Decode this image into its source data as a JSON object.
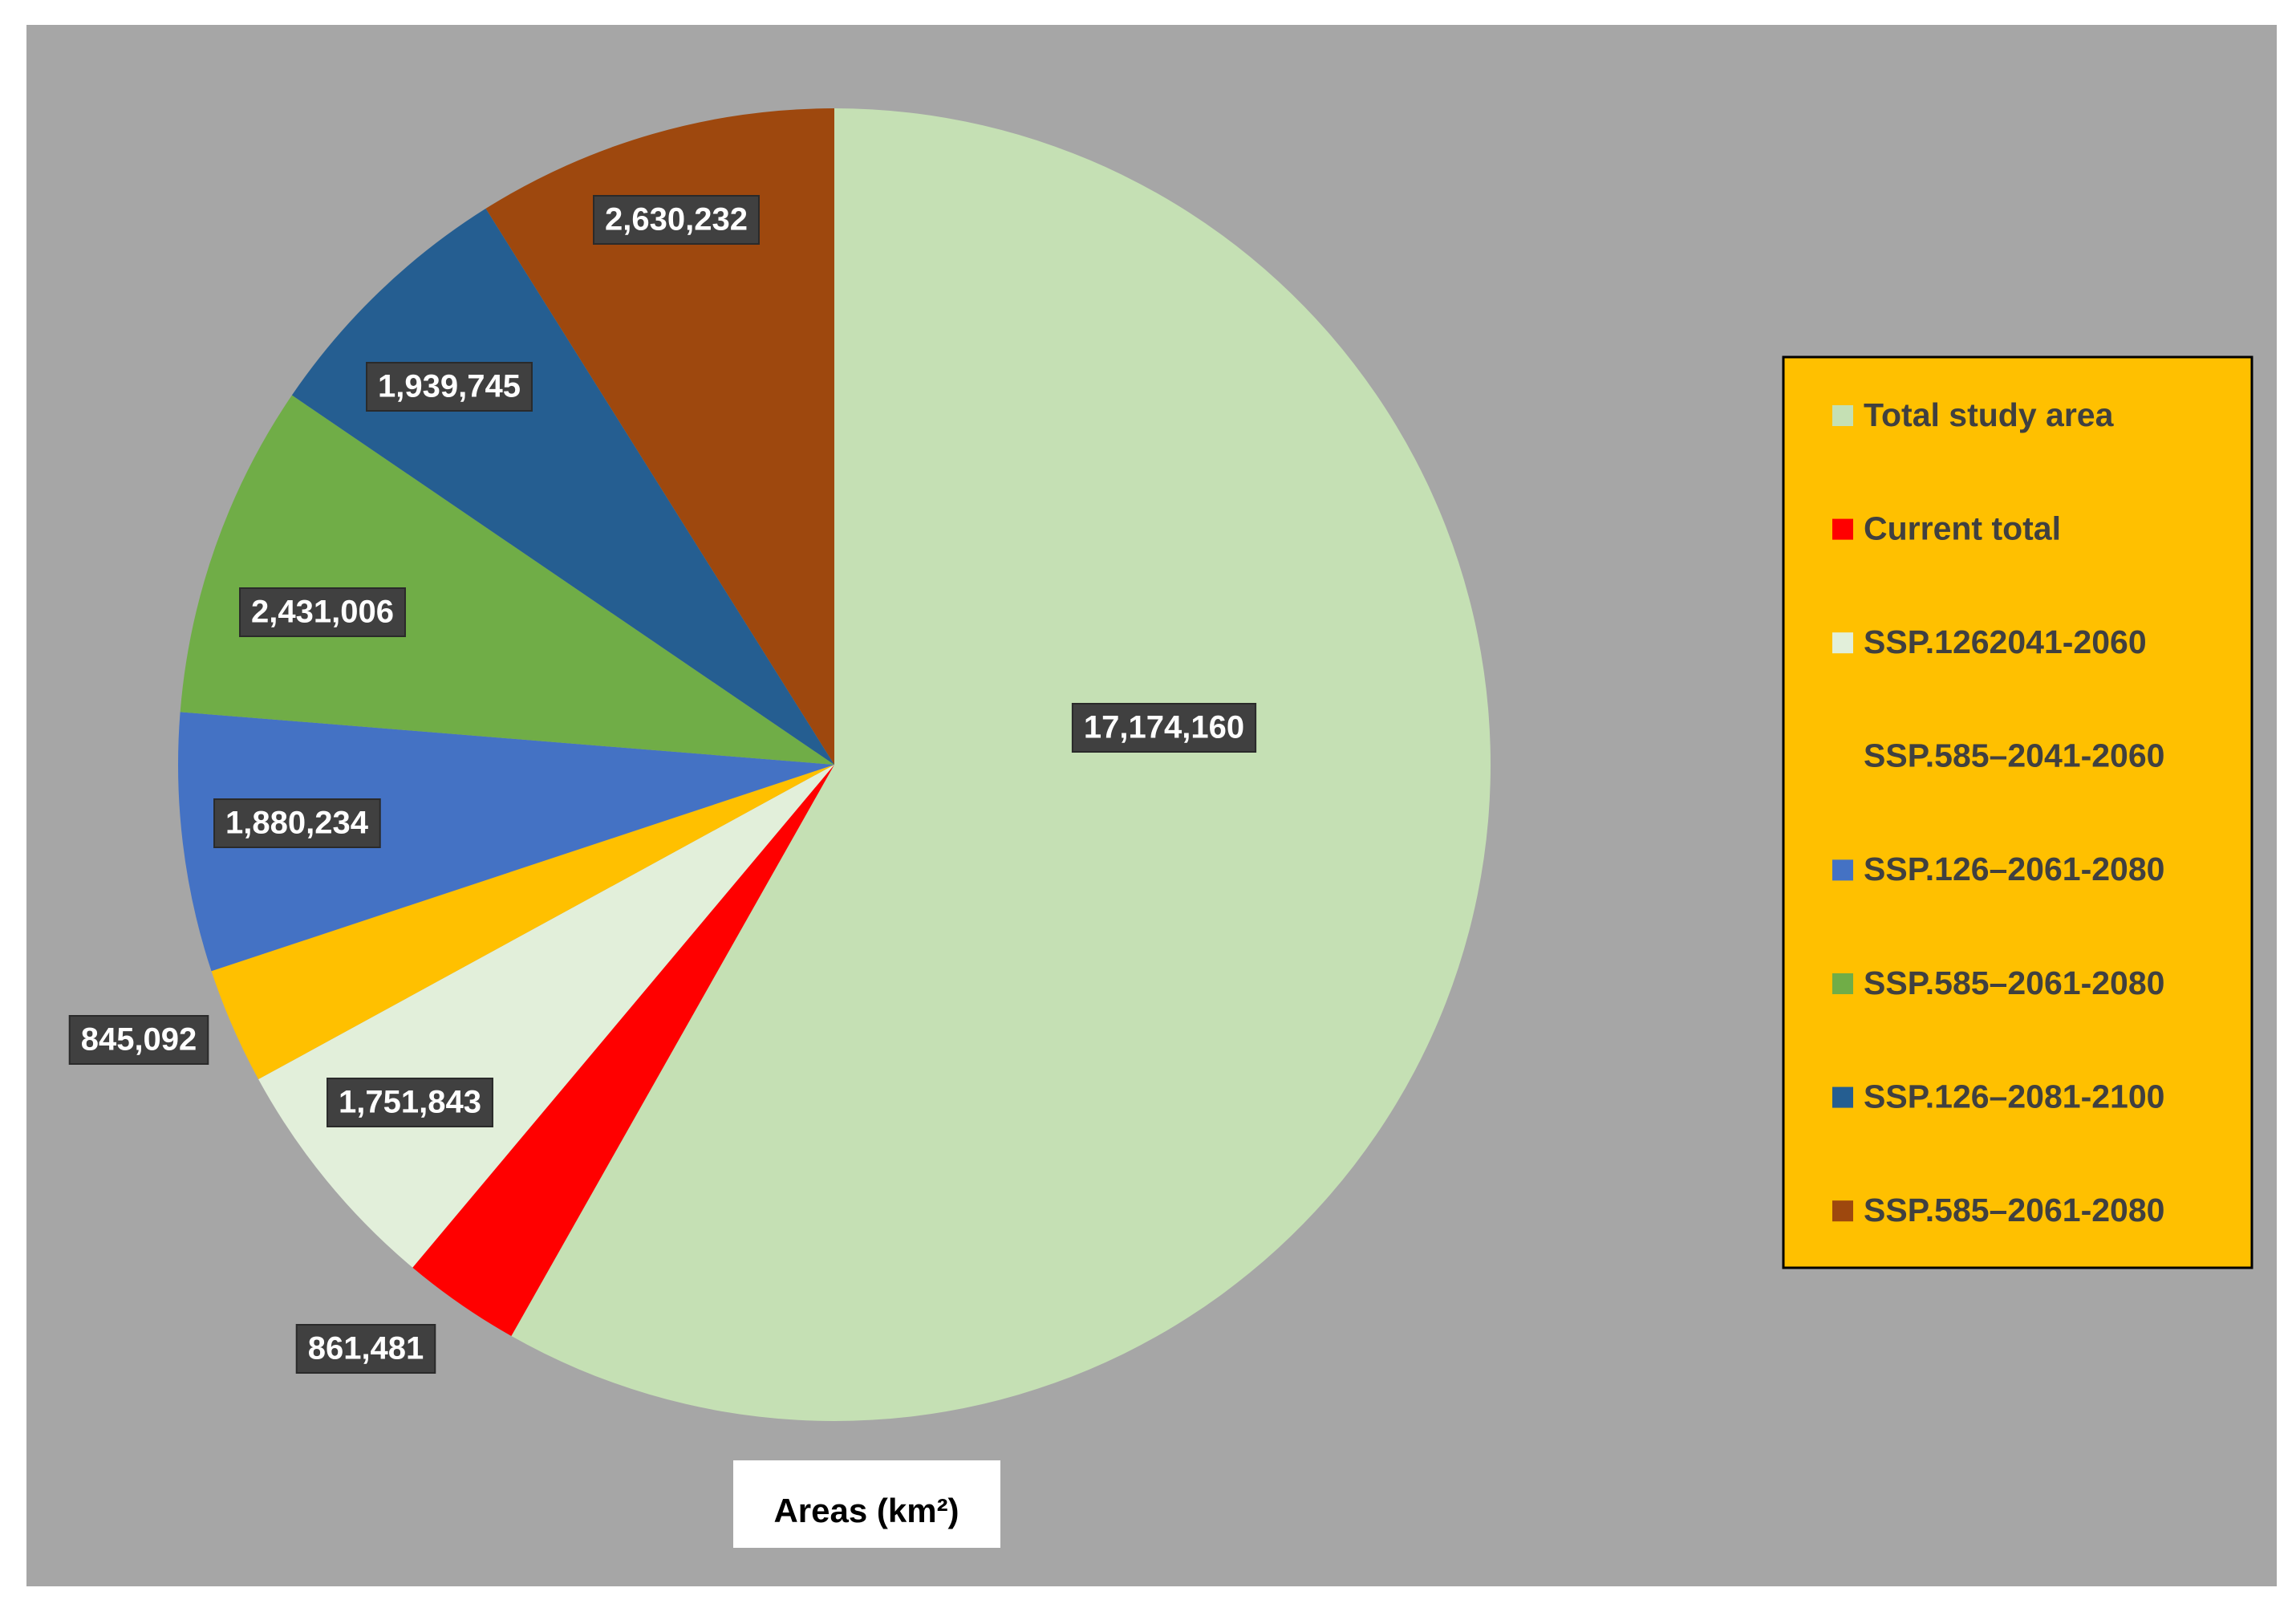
{
  "chart_data": {
    "type": "pie",
    "title": "Areas (km²)",
    "categories": [
      "Total study area",
      "Current total",
      "SSP.1262041-2060",
      "SSP.585–2041-2060",
      "SSP.126–2061-2080",
      "SSP.585–2061-2080",
      "SSP.126–2081-2100",
      "SSP.585–2061-2080"
    ],
    "values": [
      17174160,
      861481,
      1751843,
      845092,
      1880234,
      2431006,
      1939745,
      2630232
    ],
    "value_labels": [
      "17,174,160",
      "861,481",
      "1,751,843",
      "845,092",
      "1,880,234",
      "2,431,006",
      "1,939,745",
      "2,630,232"
    ],
    "colors": [
      "#c5e0b4",
      "#ff0000",
      "#e2efda",
      "#ffc000",
      "#4472c4",
      "#70ad47",
      "#255e91",
      "#9e480e"
    ],
    "legend": "right"
  }
}
